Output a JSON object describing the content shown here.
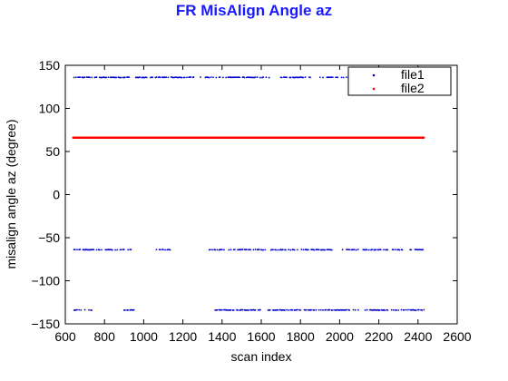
{
  "chart_data": {
    "type": "scatter",
    "title": "FR MisAlign Angle az",
    "xlabel": "scan index",
    "ylabel": "misalign angle az (degree)",
    "xlim": [
      600,
      2600
    ],
    "ylim": [
      -150,
      150
    ],
    "xticks": [
      600,
      800,
      1000,
      1200,
      1400,
      1600,
      1800,
      2000,
      2200,
      2400,
      2600
    ],
    "yticks": [
      -150,
      -100,
      -50,
      0,
      50,
      100,
      150
    ],
    "ytick_labels": [
      "−150",
      "−100",
      "−50",
      "0",
      "50",
      "100",
      "150"
    ],
    "grid": false,
    "legend_position": "top-right",
    "legend": [
      "file1",
      "file2"
    ],
    "series": [
      {
        "name": "file1",
        "color": "#0000cc",
        "marker": "dot",
        "bands": [
          {
            "y": 136,
            "segments": [
              [
                640,
                950
              ],
              [
                960,
                1020
              ],
              [
                1030,
                1300
              ],
              [
                1310,
                1390
              ],
              [
                1400,
                1640
              ],
              [
                1700,
                1860
              ],
              [
                1900,
                2300
              ],
              [
                2330,
                2430
              ]
            ]
          },
          {
            "y": -64,
            "segments": [
              [
                640,
                940
              ],
              [
                1060,
                1140
              ],
              [
                1330,
                1380
              ],
              [
                1385,
                1620
              ],
              [
                1650,
                1960
              ],
              [
                2000,
                2320
              ],
              [
                2360,
                2430
              ]
            ]
          },
          {
            "y": -134,
            "segments": [
              [
                645,
                700
              ],
              [
                720,
                740
              ],
              [
                900,
                950
              ],
              [
                1360,
                1600
              ],
              [
                1630,
                1800
              ],
              [
                1820,
                2100
              ],
              [
                2130,
                2430
              ]
            ]
          }
        ]
      },
      {
        "name": "file2",
        "color": "#ff0000",
        "marker": "dot",
        "bands": [
          {
            "y": 66,
            "segments": [
              [
                640,
                2430
              ]
            ]
          }
        ]
      }
    ]
  }
}
